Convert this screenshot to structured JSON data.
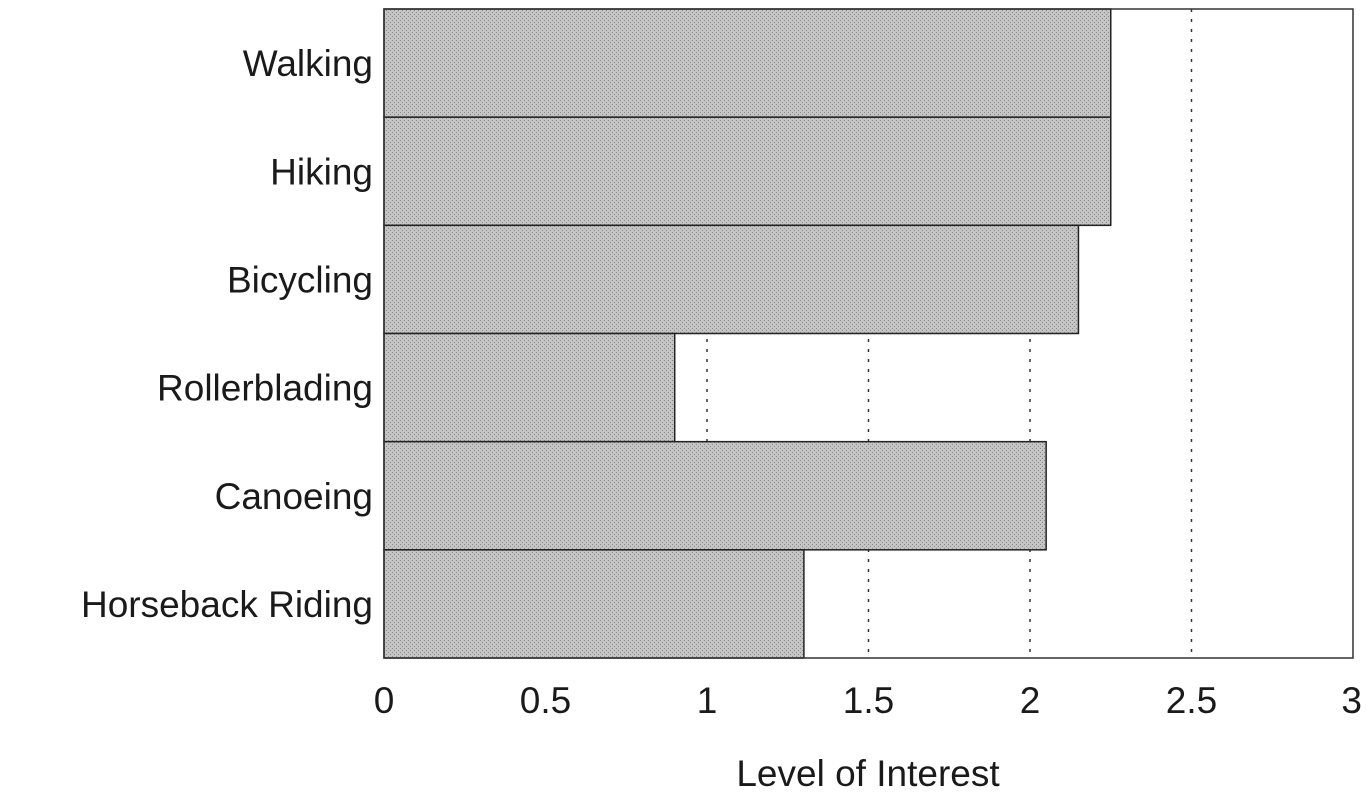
{
  "chart_data": {
    "type": "bar",
    "orientation": "horizontal",
    "categories": [
      "Walking",
      "Hiking",
      "Bicycling",
      "Rollerblading",
      "Canoeing",
      "Horseback Riding"
    ],
    "values": [
      2.25,
      2.25,
      2.15,
      0.9,
      2.05,
      1.3
    ],
    "title": "",
    "xlabel": "Level of Interest",
    "ylabel": "",
    "xlim": [
      0,
      3
    ],
    "x_ticks": [
      0,
      0.5,
      1,
      1.5,
      2,
      2.5,
      3
    ],
    "x_tick_labels": [
      "0",
      "0.5",
      "1",
      "1.5",
      "2",
      "2.5",
      "3"
    ],
    "grid": "vertical dotted lines",
    "legend": "none",
    "colors": {
      "bar_fill": "#bdbdbd",
      "bar_stroke": "#222222",
      "frame": "#333333",
      "grid": "#333333",
      "background": "#ffffff"
    }
  }
}
